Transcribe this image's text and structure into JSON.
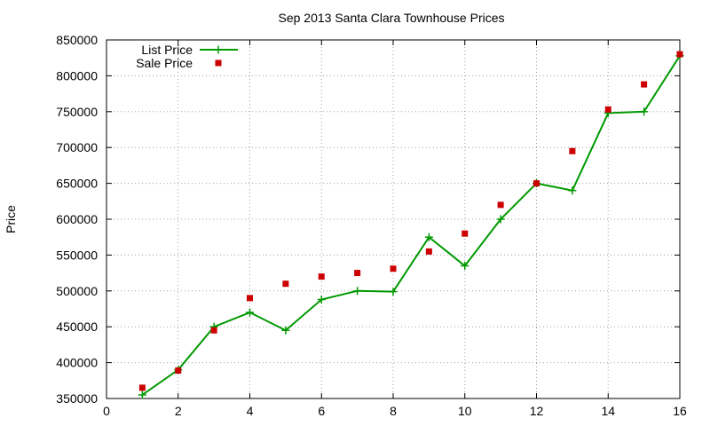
{
  "chart_data": {
    "type": "line",
    "title": "Sep 2013 Santa Clara Townhouse Prices",
    "xlabel": "",
    "ylabel": "Price",
    "xlim": [
      0,
      16
    ],
    "ylim": [
      350000,
      850000
    ],
    "x_ticks": [
      "0",
      "2",
      "4",
      "6",
      "8",
      "10",
      "12",
      "14",
      "16"
    ],
    "y_ticks": [
      "350000",
      "400000",
      "450000",
      "500000",
      "550000",
      "600000",
      "650000",
      "700000",
      "750000",
      "800000",
      "850000"
    ],
    "grid": true,
    "legend_position": "top-left",
    "series": [
      {
        "name": "List Price",
        "style": "line+cross",
        "color": "#009900",
        "x": [
          1,
          2,
          3,
          4,
          5,
          6,
          7,
          8,
          9,
          10,
          11,
          12,
          13,
          14,
          15,
          16
        ],
        "y": [
          355000,
          390000,
          450000,
          470000,
          445000,
          488000,
          500000,
          499000,
          575000,
          535000,
          600000,
          650000,
          640000,
          748000,
          750000,
          828000
        ]
      },
      {
        "name": "Sale Price",
        "style": "square",
        "color": "#cc0000",
        "x": [
          1,
          2,
          3,
          4,
          5,
          6,
          7,
          8,
          9,
          10,
          11,
          12,
          13,
          14,
          15,
          16
        ],
        "y": [
          365000,
          389000,
          445000,
          490000,
          510000,
          520000,
          525000,
          531000,
          555000,
          580000,
          620000,
          650000,
          695000,
          753000,
          788000,
          830000
        ]
      }
    ]
  }
}
